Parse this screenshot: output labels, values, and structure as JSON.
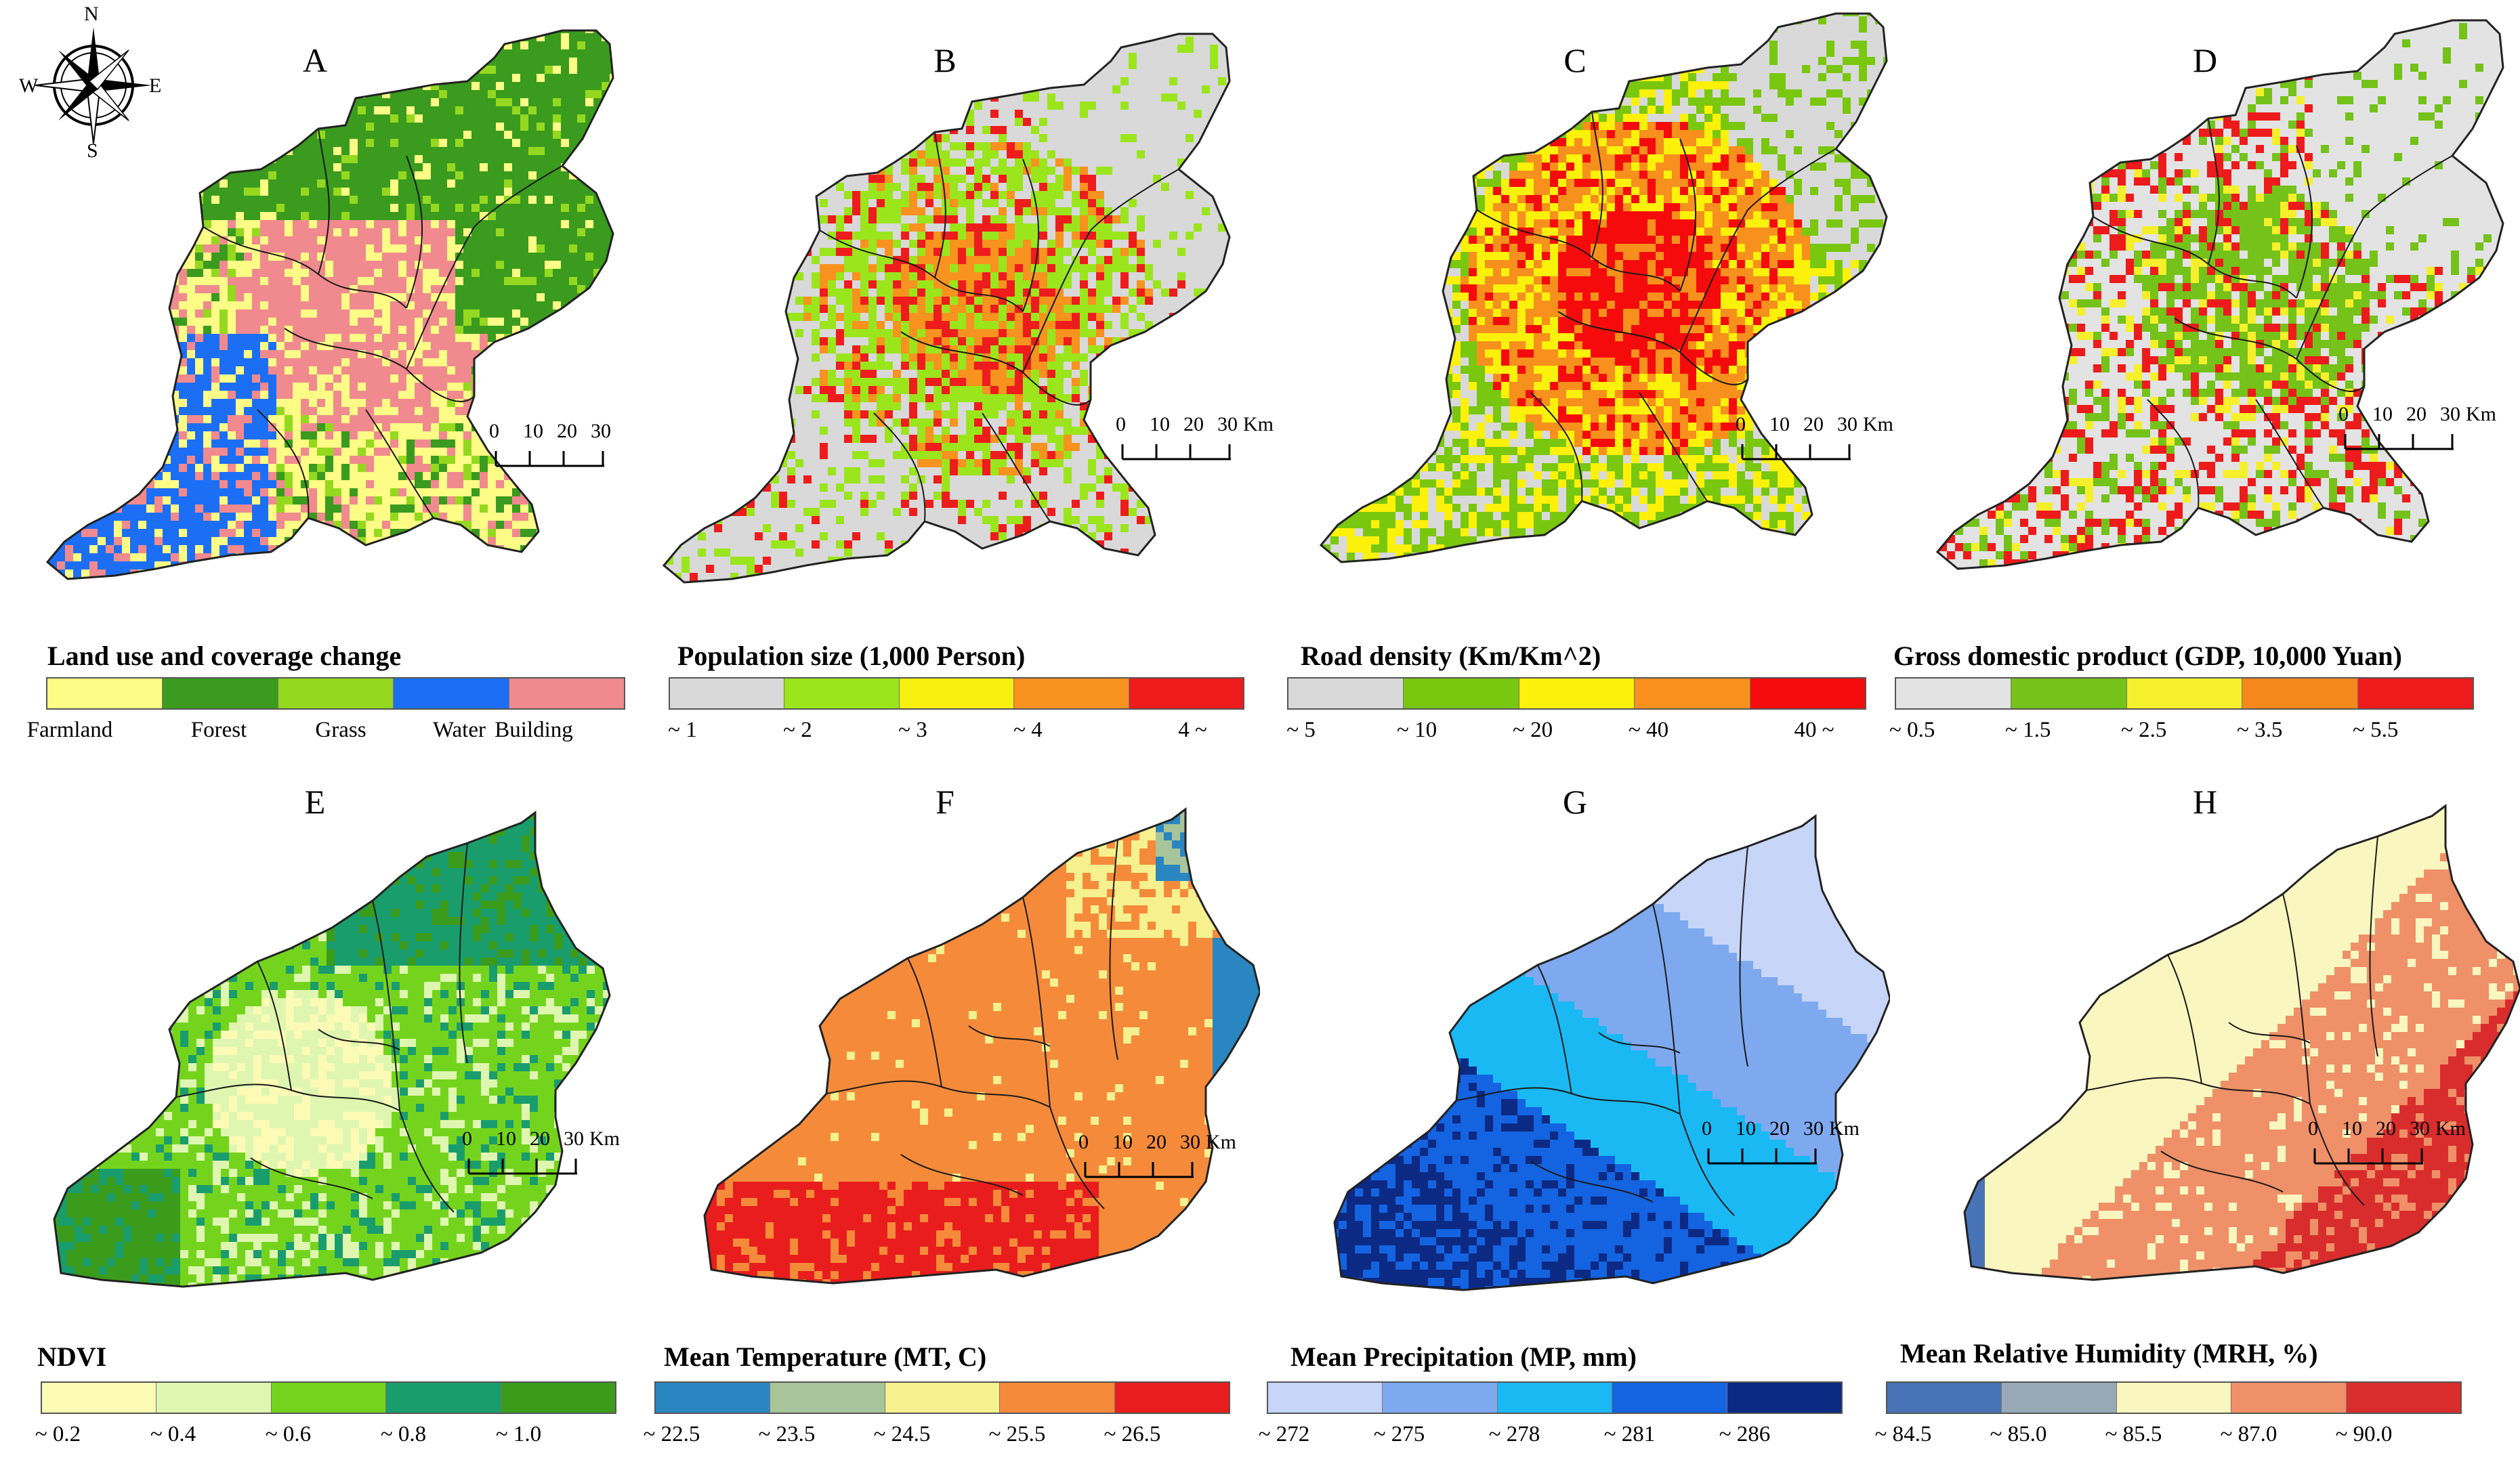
{
  "compass": {
    "n": "N",
    "s": "S",
    "e": "E",
    "w": "W"
  },
  "scale": {
    "labels": [
      "0",
      "10",
      "20",
      "30"
    ],
    "unit": "Km"
  },
  "panels": [
    {
      "letter": "A",
      "title": "Land use and coverage change",
      "colors": [
        "#fcfc86",
        "#3a9b1e",
        "#95d820",
        "#1c6ff5",
        "#f08a8e"
      ],
      "labels": [
        "Farmland",
        "Forest",
        "Grass",
        "Water",
        "Building"
      ]
    },
    {
      "letter": "B",
      "title": "Population size (1,000 Person)",
      "colors": [
        "#d9d9d9",
        "#9be51c",
        "#f6ef0f",
        "#f7931e",
        "#ee1c1c"
      ],
      "labels": [
        "~ 1",
        "~ 2",
        "~ 3",
        "~ 4",
        "4 ~"
      ]
    },
    {
      "letter": "C",
      "title": "Road density (Km/Km^2)",
      "colors": [
        "#d9d9d9",
        "#7ac70f",
        "#fbf10a",
        "#f7901c",
        "#f50b0b"
      ],
      "labels": [
        "~ 5",
        "~ 10",
        "~ 20",
        "~ 40",
        "40 ~"
      ]
    },
    {
      "letter": "D",
      "title": "Gross domestic product (GDP, 10,000 Yuan)",
      "colors": [
        "#e3e3e3",
        "#74c21a",
        "#f5f02b",
        "#f4881a",
        "#ed1b1b"
      ],
      "labels": [
        "~ 0.5",
        "~ 1.5",
        "~ 2.5",
        "~ 3.5",
        "~ 5.5"
      ]
    },
    {
      "letter": "E",
      "title": "NDVI",
      "colors": [
        "#fbfbb6",
        "#dff6b0",
        "#74d41d",
        "#1a9d6d",
        "#3b9b1b"
      ],
      "labels": [
        "~ 0.2",
        "~ 0.4",
        "~ 0.6",
        "~ 0.8",
        "~ 1.0"
      ]
    },
    {
      "letter": "F",
      "title": "Mean Temperature (MT, C)",
      "colors": [
        "#2a86c0",
        "#a8c49a",
        "#f6f08e",
        "#f58b3a",
        "#e91d1d"
      ],
      "labels": [
        "~ 22.5",
        "~ 23.5",
        "~ 24.5",
        "~ 25.5",
        "~ 26.5"
      ]
    },
    {
      "letter": "G",
      "title": "Mean Precipitation (MP, mm)",
      "colors": [
        "#c6d5f8",
        "#7ea9ef",
        "#1ab9f4",
        "#1463e0",
        "#0c2a84"
      ],
      "labels": [
        "~ 272",
        "~ 275",
        "~ 278",
        "~ 281",
        "~ 286"
      ]
    },
    {
      "letter": "H",
      "title": "Mean Relative Humidity (MRH, %)",
      "colors": [
        "#4873b6",
        "#98a9b6",
        "#faf6bf",
        "#ef9068",
        "#d92d2d"
      ],
      "labels": [
        "~ 84.5",
        "~ 85.0",
        "~ 85.5",
        "~ 87.0",
        "~ 90.0"
      ]
    }
  ]
}
